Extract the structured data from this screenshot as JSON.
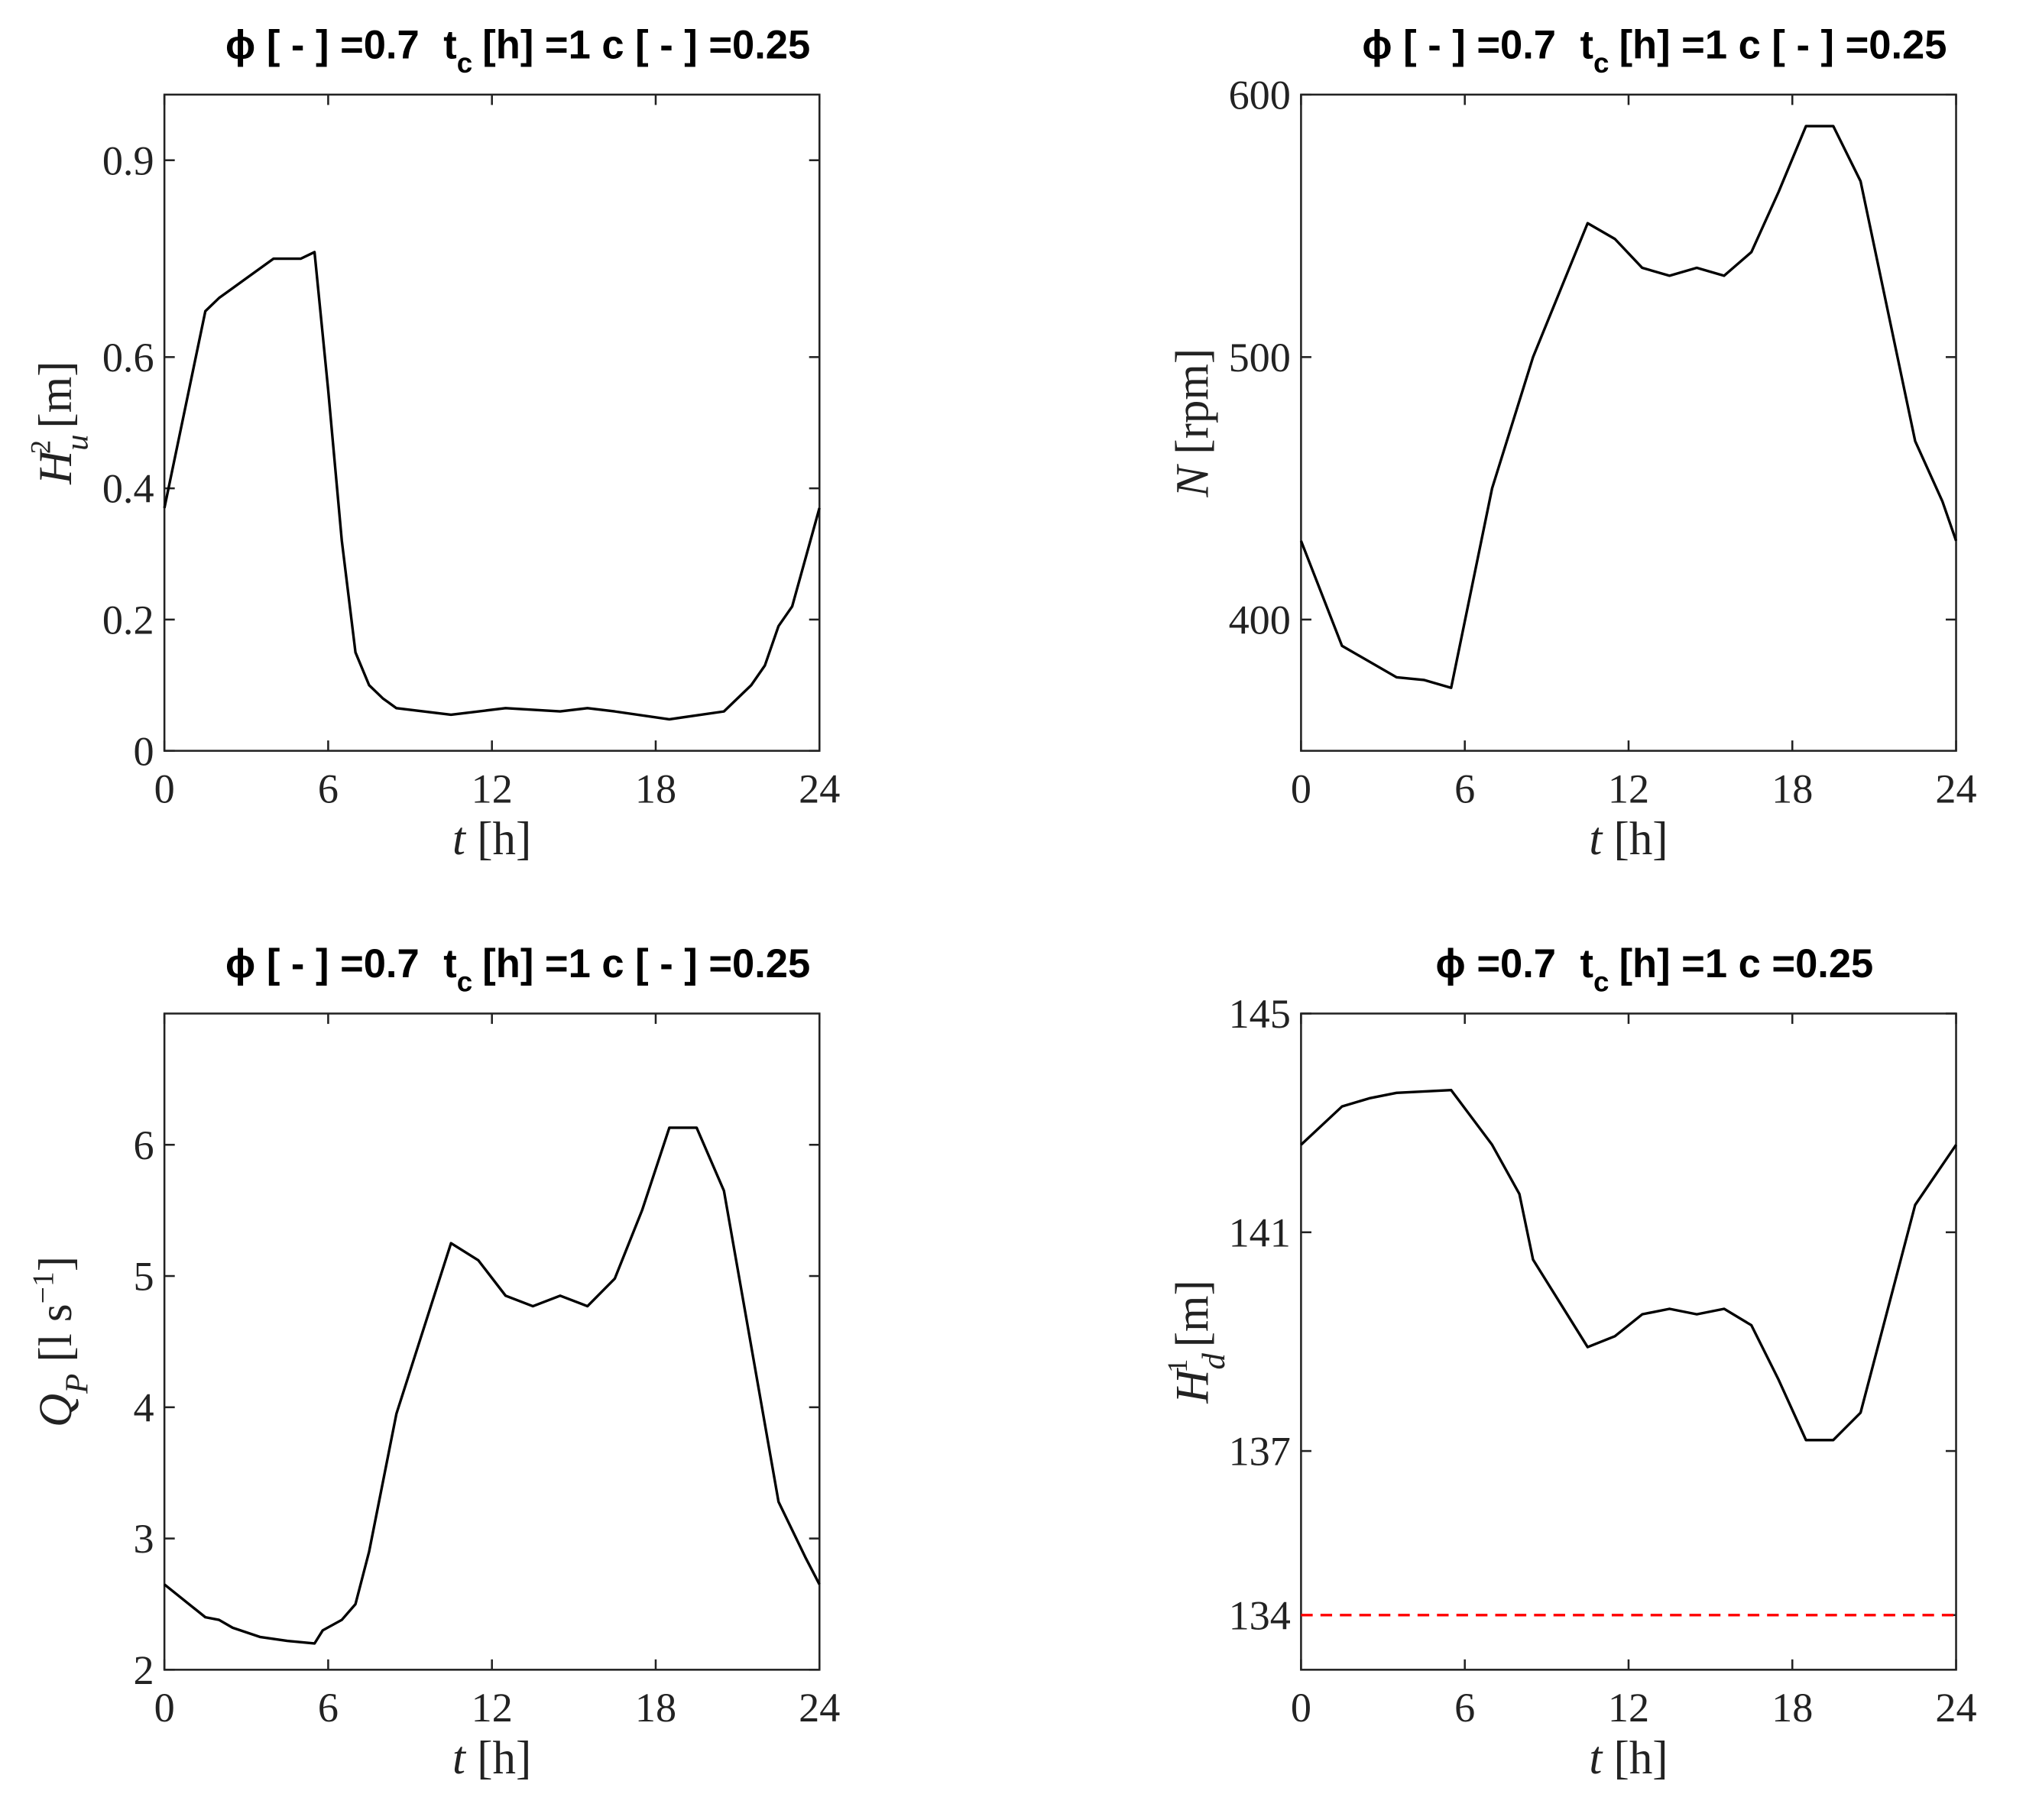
{
  "chart_data": [
    {
      "type": "line",
      "title": [
        "ϕ [ - ] =0.7",
        "t",
        "c",
        "[h] =1  c [ - ] =0.25"
      ],
      "xlabel": [
        "t",
        "[h]"
      ],
      "ylabel": [
        "H",
        "u",
        "2",
        "[m]"
      ],
      "xlim": [
        0,
        24
      ],
      "xticks": [
        0,
        6,
        12,
        18,
        24
      ],
      "ylim": [
        0,
        1
      ],
      "yticks": [
        0,
        0.2,
        0.4,
        0.6,
        0.9
      ],
      "color": "#000000",
      "x": [
        0,
        1.5,
        2,
        3,
        4,
        5,
        5.5,
        6,
        6.5,
        7,
        7.5,
        8,
        8.5,
        10.5,
        12.5,
        14.5,
        15.5,
        16.5,
        18.5,
        20.5,
        21.5,
        22,
        22.5,
        23,
        24
      ],
      "values": [
        0.37,
        0.67,
        0.69,
        0.72,
        0.75,
        0.75,
        0.76,
        0.55,
        0.32,
        0.15,
        0.1,
        0.08,
        0.065,
        0.055,
        0.065,
        0.06,
        0.065,
        0.06,
        0.048,
        0.06,
        0.1,
        0.13,
        0.19,
        0.22,
        0.37
      ]
    },
    {
      "type": "line",
      "title": [
        "ϕ [ - ] =0.7",
        "t",
        "c",
        "[h] =1  c [ - ] =0.25"
      ],
      "xlabel": [
        "t",
        "[h]"
      ],
      "ylabel": [
        "N",
        "[rpm]"
      ],
      "xlim": [
        0,
        24
      ],
      "xticks": [
        0,
        6,
        12,
        18,
        24
      ],
      "ylim": [
        350,
        600
      ],
      "yticks": [
        400,
        500,
        600
      ],
      "color": "#000000",
      "x": [
        0,
        1.5,
        2,
        3.5,
        4.5,
        5.5,
        7,
        8.5,
        10.5,
        11.5,
        12.5,
        13.5,
        14.5,
        15.5,
        16.5,
        17.5,
        18.5,
        19.5,
        20.5,
        22.5,
        23.5,
        24
      ],
      "values": [
        430,
        390,
        387,
        378,
        377,
        374,
        450,
        500,
        551,
        545,
        534,
        531,
        534,
        531,
        540,
        563,
        588,
        588,
        567,
        468,
        445,
        430
      ]
    },
    {
      "type": "line",
      "title": [
        "ϕ [ - ] =0.7",
        "t",
        "c",
        "[h] =1  c [ - ] =0.25"
      ],
      "xlabel": [
        "t",
        "[h]"
      ],
      "ylabel": [
        "Q",
        "P",
        "[l s",
        "−1",
        "]"
      ],
      "xlim": [
        0,
        24
      ],
      "xticks": [
        0,
        6,
        12,
        18,
        24
      ],
      "ylim": [
        2,
        7
      ],
      "yticks": [
        2,
        3,
        4,
        5,
        6
      ],
      "color": "#000000",
      "x": [
        0,
        1.5,
        2,
        2.5,
        3.5,
        4.5,
        5.5,
        5.8,
        6.5,
        7,
        7.5,
        8.5,
        10.5,
        11.5,
        12.5,
        13.5,
        14.5,
        15.5,
        16.5,
        17.5,
        18.5,
        19.5,
        20.5,
        22.5,
        23.5,
        24
      ],
      "values": [
        2.65,
        2.4,
        2.38,
        2.32,
        2.25,
        2.22,
        2.2,
        2.3,
        2.38,
        2.5,
        2.9,
        3.95,
        5.25,
        5.12,
        4.85,
        4.77,
        4.85,
        4.77,
        4.98,
        5.5,
        6.13,
        6.13,
        5.65,
        3.28,
        2.85,
        2.65
      ]
    },
    {
      "type": "line",
      "title": [
        "ϕ =0.7",
        "t",
        "c",
        "[h] =1  c =0.25"
      ],
      "xlabel": [
        "t",
        "[h]"
      ],
      "ylabel": [
        "H",
        "d",
        "1",
        "[m]"
      ],
      "xlim": [
        0,
        24
      ],
      "xticks": [
        0,
        6,
        12,
        18,
        24
      ],
      "ylim": [
        133,
        145
      ],
      "yticks": [
        134,
        137,
        141,
        145
      ],
      "color": "#000000",
      "x": [
        0,
        1.5,
        2.5,
        3.5,
        5.5,
        7,
        8,
        8.5,
        9.5,
        10.5,
        11.5,
        12.5,
        13.5,
        14.5,
        15.5,
        16.5,
        17.5,
        18.5,
        19.5,
        20.5,
        22.5,
        24
      ],
      "values": [
        142.6,
        143.3,
        143.45,
        143.55,
        143.6,
        142.6,
        141.7,
        140.5,
        139.7,
        138.9,
        139.1,
        139.5,
        139.6,
        139.5,
        139.6,
        139.3,
        138.3,
        137.2,
        137.2,
        137.7,
        141.5,
        142.6
      ],
      "reference_line": {
        "value": 134,
        "color": "#ff0000",
        "dash": true
      }
    }
  ]
}
